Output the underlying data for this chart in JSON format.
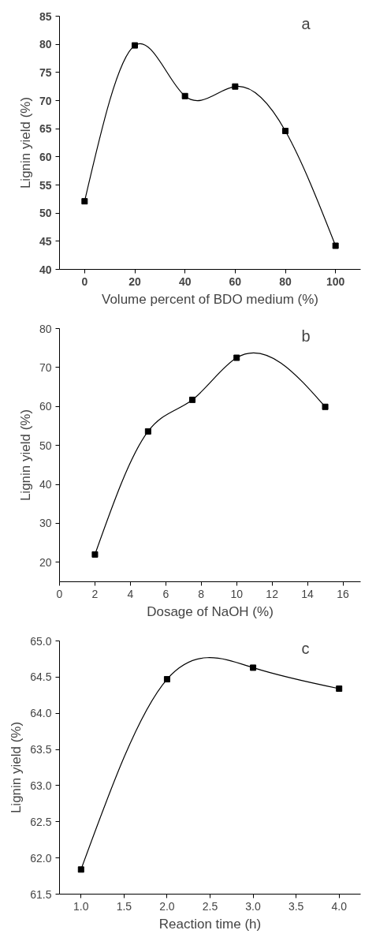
{
  "chart_data": [
    {
      "type": "line",
      "xlabel": "Volume percent of BDO medium (%)",
      "ylabel": "Lignin yield (%)",
      "annotations": [
        "a"
      ],
      "x": [
        0,
        20,
        40,
        60,
        80,
        100
      ],
      "values": [
        52.1,
        79.8,
        70.8,
        72.5,
        64.6,
        44.2
      ],
      "color": "#000000",
      "marker": "square",
      "line_style": "solid",
      "xlim": [
        -10,
        110
      ],
      "ylim": [
        40,
        85
      ],
      "xticks": [
        0,
        20,
        40,
        60,
        80,
        100
      ],
      "yticks": [
        40,
        45,
        50,
        55,
        60,
        65,
        70,
        75,
        80,
        85
      ],
      "grid": false
    },
    {
      "type": "line",
      "xlabel": "Dosage of NaOH (%)",
      "ylabel": "Lignin yield (%)",
      "annotations": [
        "b"
      ],
      "x": [
        2,
        5,
        7.5,
        10,
        15
      ],
      "values": [
        22.0,
        53.6,
        61.7,
        72.5,
        59.9
      ],
      "color": "#000000",
      "marker": "square",
      "line_style": "solid",
      "xlim": [
        0,
        17
      ],
      "ylim": [
        15,
        80
      ],
      "xticks": [
        0,
        2,
        4,
        6,
        8,
        10,
        12,
        14,
        16
      ],
      "yticks": [
        20,
        30,
        40,
        50,
        60,
        70,
        80
      ],
      "grid": false
    },
    {
      "type": "line",
      "xlabel": "Reaction time (h)",
      "ylabel": "Lignin yield (%)",
      "annotations": [
        "c"
      ],
      "x": [
        1,
        2,
        3,
        4
      ],
      "values": [
        61.84,
        64.47,
        64.63,
        64.34
      ],
      "color": "#000000",
      "marker": "square",
      "line_style": "solid",
      "xlim": [
        0.75,
        4.25
      ],
      "ylim": [
        61.5,
        65.0
      ],
      "xticks": [
        {
          "value": 1,
          "label": "1.0"
        },
        {
          "value": 1.5,
          "label": "1.5"
        },
        {
          "value": 2,
          "label": "2.0"
        },
        {
          "value": 2.5,
          "label": "2.5"
        },
        {
          "value": 3,
          "label": "3.0"
        },
        {
          "value": 3.5,
          "label": "3.5"
        },
        {
          "value": 4,
          "label": "4.0"
        }
      ],
      "yticks": [
        {
          "value": 61.5,
          "label": "61.5"
        },
        {
          "value": 62,
          "label": "62.0"
        },
        {
          "value": 62.5,
          "label": "62.5"
        },
        {
          "value": 63,
          "label": "63.0"
        },
        {
          "value": 63.5,
          "label": "63.5"
        },
        {
          "value": 64,
          "label": "64.0"
        },
        {
          "value": 64.5,
          "label": "64.5"
        },
        {
          "value": 65,
          "label": "65.0"
        }
      ],
      "grid": false
    }
  ]
}
